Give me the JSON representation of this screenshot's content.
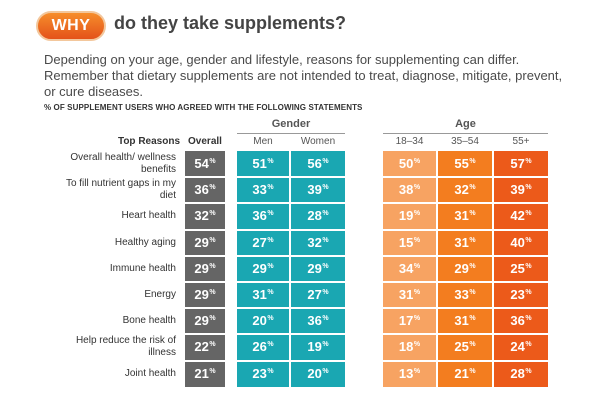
{
  "header": {
    "badge": "WHY",
    "headline": "do they take supplements?",
    "intro": "Depending on your age, gender and lifestyle, reasons for supplementing can differ. Remember that dietary supplements are not intended to treat, diagnose, mitigate, prevent, or cure diseases."
  },
  "colors": {
    "overall": "#656565",
    "gender": "#1aa7b2",
    "age_18_34": "#f7a362",
    "age_35_54": "#f37d1f",
    "age_55_plus": "#ec5a1a",
    "badge": "#ee6a20"
  },
  "chart_data": {
    "type": "table",
    "title": "% OF SUPPLEMENT USERS WHO AGREED WITH THE FOLLOWING STATEMENTS",
    "row_header": "Top Reasons",
    "groups": [
      {
        "label": "Gender",
        "columns": [
          "Men",
          "Women"
        ]
      },
      {
        "label": "Age",
        "columns": [
          "18–34",
          "35–54",
          "55+"
        ]
      }
    ],
    "columns": [
      "Overall",
      "Men",
      "Women",
      "18–34",
      "35–54",
      "55+"
    ],
    "unit": "%",
    "rows": [
      {
        "reason": "Overall health/ wellness benefits",
        "values": [
          54,
          51,
          56,
          50,
          55,
          57
        ]
      },
      {
        "reason": "To fill nutrient gaps in my diet",
        "values": [
          36,
          33,
          39,
          38,
          32,
          39
        ]
      },
      {
        "reason": "Heart health",
        "values": [
          32,
          36,
          28,
          19,
          31,
          42
        ]
      },
      {
        "reason": "Healthy aging",
        "values": [
          29,
          27,
          32,
          15,
          31,
          40
        ]
      },
      {
        "reason": "Immune health",
        "values": [
          29,
          29,
          29,
          34,
          29,
          25
        ]
      },
      {
        "reason": "Energy",
        "values": [
          29,
          31,
          27,
          31,
          33,
          23
        ]
      },
      {
        "reason": "Bone health",
        "values": [
          29,
          20,
          36,
          17,
          31,
          36
        ]
      },
      {
        "reason": "Help reduce the risk of illness",
        "values": [
          22,
          26,
          19,
          18,
          25,
          24
        ]
      },
      {
        "reason": "Joint health",
        "values": [
          21,
          23,
          20,
          13,
          21,
          28
        ]
      }
    ]
  }
}
